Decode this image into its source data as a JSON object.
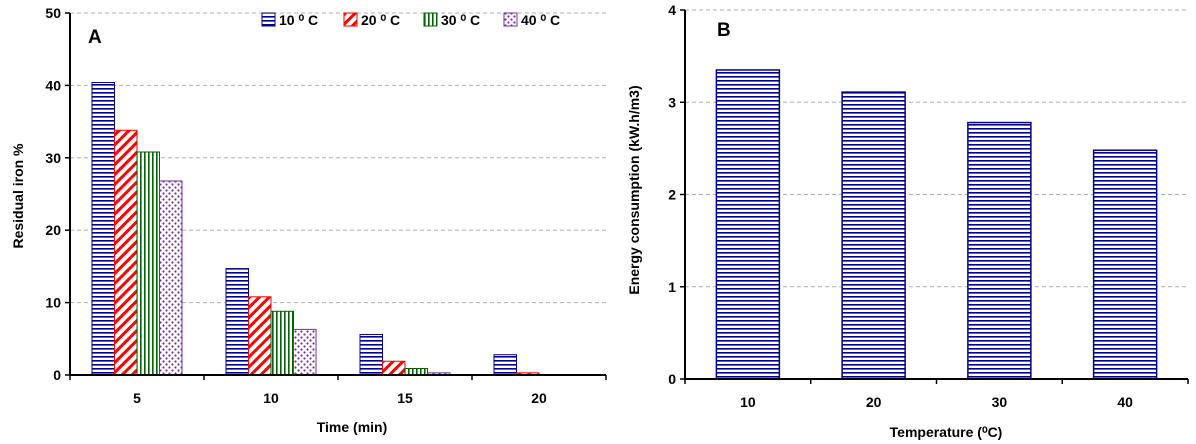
{
  "chart_data": [
    {
      "type": "bar",
      "panel_label": "A",
      "categories": [
        "5",
        "10",
        "15",
        "20"
      ],
      "xlabel": "Time (min)",
      "ylabel": "Residual iron %",
      "ylim": [
        0,
        50
      ],
      "yticks": [
        "0",
        "10",
        "20",
        "30",
        "40",
        "50"
      ],
      "grid": true,
      "legend_position": "top",
      "series": [
        {
          "name": "10 ⁰ C",
          "color": "#00008B",
          "pattern": "horizontal-lines",
          "values": [
            40.4,
            14.7,
            5.6,
            2.8
          ]
        },
        {
          "name": "20 ⁰ C",
          "color": "#FF0000",
          "pattern": "diagonal-lines",
          "values": [
            33.8,
            10.8,
            1.9,
            0.3
          ]
        },
        {
          "name": "30 ⁰ C",
          "color": "#006400",
          "pattern": "vertical-lines",
          "values": [
            30.8,
            8.8,
            0.9,
            0.0
          ]
        },
        {
          "name": "40 ⁰ C",
          "color": "#7030A0",
          "pattern": "dots",
          "values": [
            26.8,
            6.3,
            0.3,
            0.0
          ]
        }
      ]
    },
    {
      "type": "bar",
      "panel_label": "B",
      "categories": [
        "10",
        "20",
        "30",
        "40"
      ],
      "xlabel": "Temperature (⁰C)",
      "ylabel": "Energy consumption  (kW.h/m3)",
      "ylim": [
        0,
        4
      ],
      "yticks": [
        "0",
        "1",
        "2",
        "3",
        "4"
      ],
      "grid": true,
      "series": [
        {
          "color": "#00008B",
          "pattern": "horizontal-lines",
          "values": [
            3.35,
            3.11,
            2.78,
            2.48
          ]
        }
      ]
    }
  ]
}
